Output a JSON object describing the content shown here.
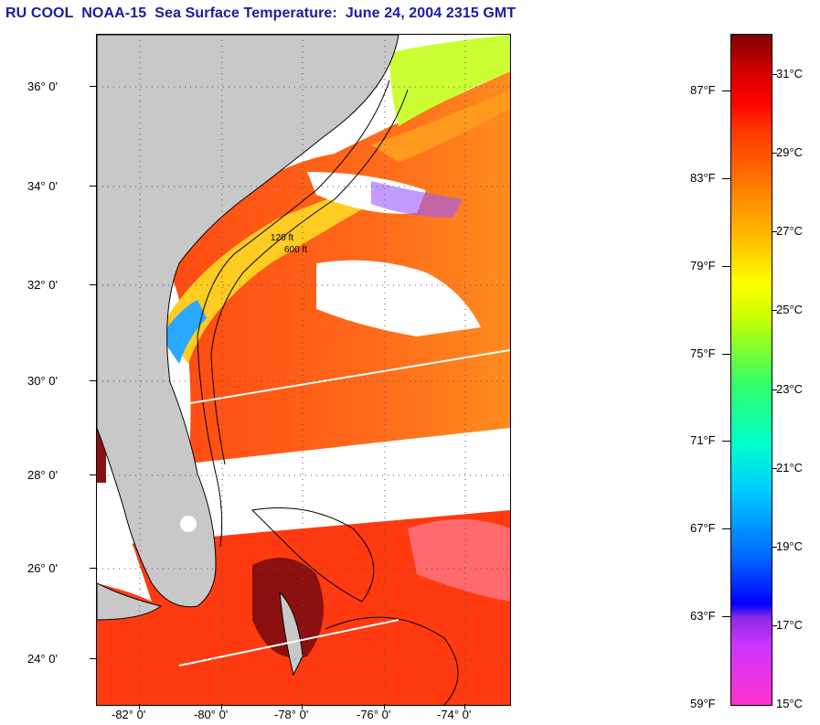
{
  "title": "RU COOL  NOAA-15  Sea Surface Temperature:  June 24, 2004 2315 GMT",
  "map": {
    "lat_labels": [
      "36° 0'",
      "34° 0'",
      "32° 0'",
      "30° 0'",
      "28° 0'",
      "26° 0'",
      "24° 0'"
    ],
    "lon_labels": [
      "-82° 0'",
      "-80° 0'",
      "-78° 0'",
      "-76° 0'",
      "-74° 0'"
    ],
    "contour_labels": [
      "120 ft",
      "600 ft"
    ],
    "colors": {
      "land": "#c8c8c8",
      "cloud": "#ffffff",
      "warm": "#ff5a14",
      "hot": "#d21e1e"
    }
  },
  "colorbar": {
    "fahrenheit": [
      "87°F",
      "83°F",
      "79°F",
      "75°F",
      "71°F",
      "67°F",
      "63°F",
      "59°F"
    ],
    "celsius": [
      "31°C",
      "29°C",
      "27°C",
      "25°C",
      "23°C",
      "21°C",
      "19°C",
      "17°C",
      "15°C"
    ]
  }
}
